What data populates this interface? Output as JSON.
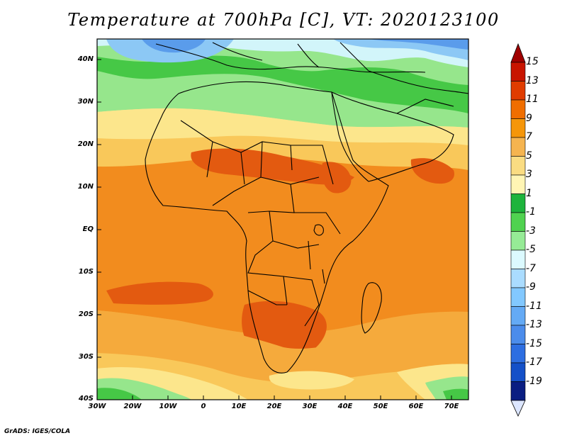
{
  "title": "Temperature at 700hPa [C], VT: 2020123100",
  "credit": "GrADS: IGES/COLA",
  "lat_labels": [
    "40N",
    "30N",
    "20N",
    "10N",
    "EQ",
    "10S",
    "20S",
    "30S",
    "40S"
  ],
  "lon_labels": [
    "30W",
    "20W",
    "10W",
    "0",
    "10E",
    "20E",
    "30E",
    "40E",
    "50E",
    "60E",
    "70E"
  ],
  "colorbar": {
    "labels": [
      "15",
      "13",
      "11",
      "9",
      "7",
      "5",
      "3",
      "1",
      "-1",
      "-3",
      "-5",
      "-7",
      "-9",
      "-11",
      "-13",
      "-15",
      "-17",
      "-19"
    ],
    "colors": [
      "#c81400",
      "#e03c00",
      "#f06e00",
      "#f5960a",
      "#f5b450",
      "#fadc82",
      "#fff5b4",
      "#1eb43c",
      "#50d250",
      "#96eb96",
      "#dcfaff",
      "#aadcff",
      "#82c8ff",
      "#64aaf5",
      "#4b8ceb",
      "#2d6ee1",
      "#1450c8",
      "#0a1e82"
    ],
    "top_arrow_color": "#a00000",
    "bottom_arrow_color": "#dce6ff"
  },
  "palette": {
    "deep_orange": "#e35a10",
    "orange": "#f28c1e",
    "light_orange": "#f5aa3c",
    "yellow_orange": "#f9c85a",
    "pale_yellow": "#fce68c",
    "light_green": "#96e68c",
    "green": "#46c846",
    "pale_cyan": "#d2f5fa",
    "light_blue": "#8cc8f5",
    "blue": "#5a9ceb"
  }
}
